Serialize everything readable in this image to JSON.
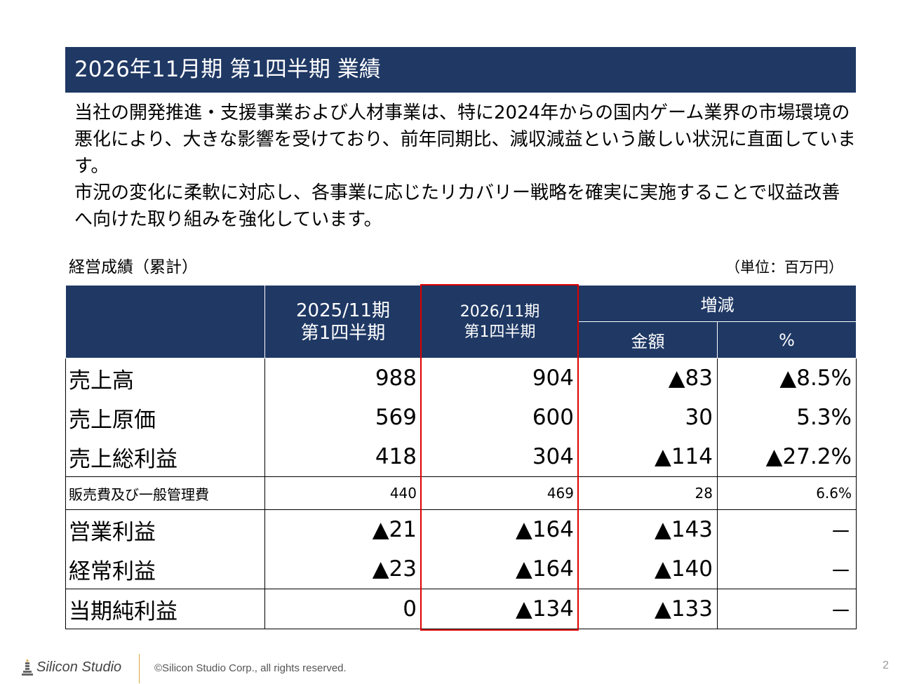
{
  "title": "2026年11月期 第1四半期 業績",
  "intro": {
    "paragraph1": "当社の開発推進・支援事業および人材事業は、特に2024年からの国内ゲーム業界の市場環境の悪化により、大きな影響を受けており、前年同期比、減収減益という厳しい状況に直面しています。",
    "paragraph2": "市況の変化に柔軟に対応し、各事業に応じたリカバリー戦略を確実に実施することで収益改善へ向けた取り組みを強化しています。"
  },
  "table": {
    "caption": "経営成績（累計）",
    "unit": "（単位：百万円）",
    "headers": {
      "prev_period": "2025/11期",
      "prev_quarter": "第1四半期",
      "curr_period": "2026/11期",
      "curr_quarter": "第1四半期",
      "change": "増減",
      "amount": "金額",
      "percent": "%"
    },
    "rows": [
      {
        "label": "売上高",
        "prev": "988",
        "curr": "904",
        "diff": "▲83",
        "pct": "▲8.5%"
      },
      {
        "label": "売上原価",
        "prev": "569",
        "curr": "600",
        "diff": "30",
        "pct": "5.3%"
      },
      {
        "label": "売上総利益",
        "prev": "418",
        "curr": "304",
        "diff": "▲114",
        "pct": "▲27.2%"
      },
      {
        "label": "販売費及び一般管理費",
        "prev": "440",
        "curr": "469",
        "diff": "28",
        "pct": "6.6%"
      },
      {
        "label": "営業利益",
        "prev": "▲21",
        "curr": "▲164",
        "diff": "▲143",
        "pct": "－"
      },
      {
        "label": "経常利益",
        "prev": "▲23",
        "curr": "▲164",
        "diff": "▲140",
        "pct": "－"
      },
      {
        "label": "当期純利益",
        "prev": "0",
        "curr": "▲134",
        "diff": "▲133",
        "pct": "－"
      }
    ]
  },
  "footer": {
    "logo": "Silicon Studio",
    "copyright": "©Silicon Studio Corp., all rights reserved.",
    "page_number": "2"
  },
  "colors": {
    "header_navy": "#1f3864",
    "highlight_red": "#e00000",
    "logo_accent": "#d9a441"
  }
}
